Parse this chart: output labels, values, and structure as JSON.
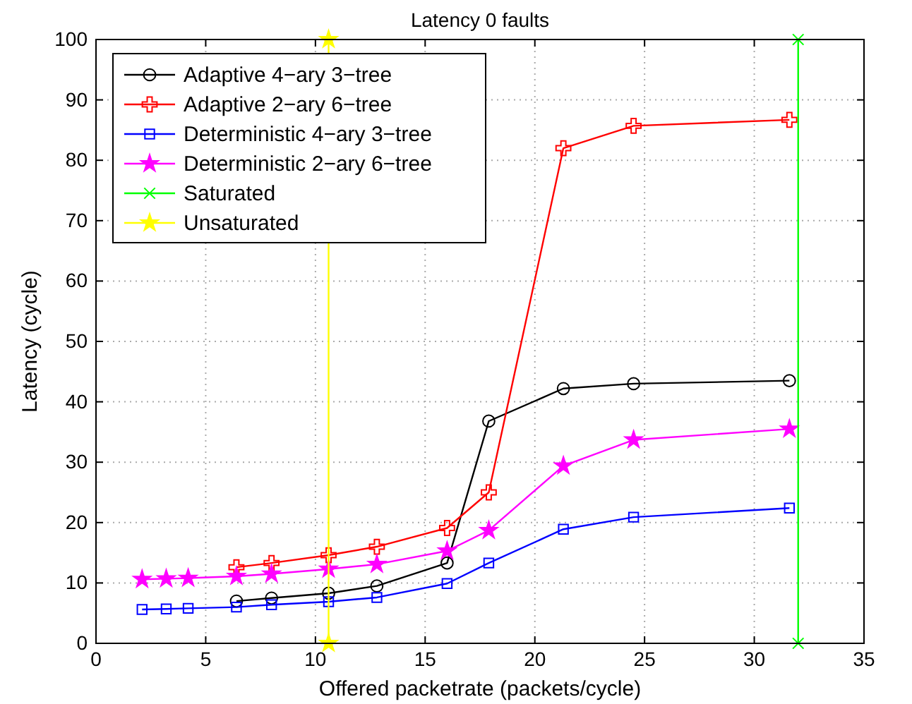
{
  "chart_data": {
    "type": "line",
    "title": "Latency 0 faults",
    "xlabel": "Offered packetrate (packets/cycle)",
    "ylabel": "Latency (cycle)",
    "xlim": [
      0,
      35
    ],
    "xticks": [
      0,
      5,
      10,
      15,
      20,
      25,
      30,
      35
    ],
    "ylim": [
      0,
      100
    ],
    "yticks": [
      0,
      10,
      20,
      30,
      40,
      50,
      60,
      70,
      80,
      90,
      100
    ],
    "grid": true,
    "legend": "top left",
    "series": [
      {
        "name": "Adaptive 4−ary 3−tree",
        "color": "#000000",
        "marker": "circle",
        "x": [
          6.4,
          8.0,
          10.6,
          12.8,
          16.0,
          17.9,
          21.3,
          24.5,
          31.6
        ],
        "values": [
          7.0,
          7.5,
          8.3,
          9.5,
          13.3,
          36.8,
          42.2,
          43.0,
          43.5
        ]
      },
      {
        "name": "Adaptive 2−ary 6−tree",
        "color": "#ff0000",
        "marker": "plus",
        "x": [
          6.4,
          8.0,
          10.6,
          12.8,
          16.0,
          17.9,
          21.3,
          24.5,
          31.6
        ],
        "values": [
          12.6,
          13.3,
          14.6,
          16.0,
          19.1,
          25.0,
          82.0,
          85.7,
          86.7
        ]
      },
      {
        "name": "Deterministic 4−ary 3−tree",
        "color": "#0000ff",
        "marker": "square",
        "x": [
          2.1,
          3.2,
          4.2,
          6.4,
          8.0,
          10.6,
          12.8,
          16.0,
          17.9,
          21.3,
          24.5,
          31.6
        ],
        "values": [
          5.6,
          5.7,
          5.8,
          6.0,
          6.4,
          6.9,
          7.6,
          9.9,
          13.3,
          18.9,
          20.9,
          22.4
        ]
      },
      {
        "name": "Deterministic 2−ary 6−tree",
        "color": "#ff00ff",
        "marker": "star",
        "x": [
          2.1,
          3.2,
          4.2,
          6.4,
          8.0,
          10.6,
          12.8,
          16.0,
          17.9,
          21.3,
          24.5,
          31.6
        ],
        "values": [
          10.6,
          10.7,
          10.8,
          11.1,
          11.5,
          12.3,
          13.1,
          15.3,
          18.7,
          29.4,
          33.7,
          35.5
        ]
      },
      {
        "name": "Saturated",
        "color": "#00ff00",
        "marker": "cross",
        "x": [
          32.0,
          32.0
        ],
        "values": [
          0,
          100
        ]
      },
      {
        "name": "Unsaturated",
        "color": "#ffff00",
        "marker": "star",
        "x": [
          10.6,
          10.6
        ],
        "values": [
          0,
          100
        ]
      }
    ]
  }
}
